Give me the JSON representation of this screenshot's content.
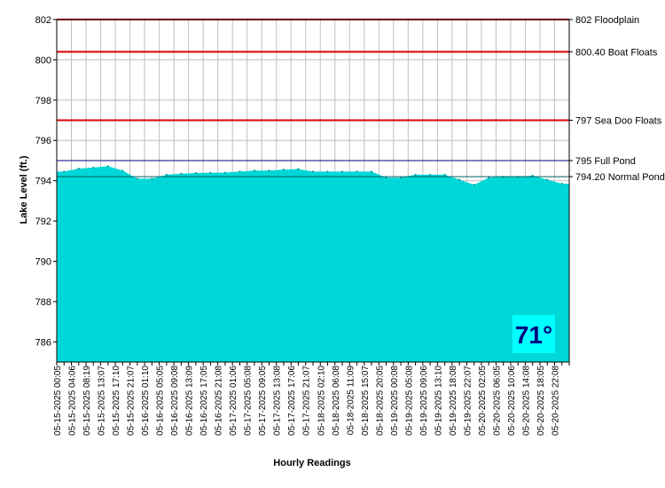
{
  "chart_data": {
    "type": "area",
    "title": "",
    "xlabel": "Hourly Readings",
    "ylabel": "Lake Level (ft.)",
    "ylim": [
      785,
      802
    ],
    "y_ticks": [
      "802",
      "800",
      "798",
      "796",
      "794",
      "792",
      "790",
      "788",
      "786"
    ],
    "grid": true,
    "fill_color": "#00dcdc",
    "x_tick_labels": [
      "05-15-2025 00:05",
      "05-15-2025 04:06",
      "05-15-2025 08:19",
      "05-15-2025 13:07",
      "05-15-2025 17:10",
      "05-15-2025 21:07",
      "05-16-2025 01:10",
      "05-16-2025 05:05",
      "05-16-2025 09:08",
      "05-16-2025 13:09",
      "05-16-2025 17:05",
      "05-16-2025 21:08",
      "05-17-2025 01:06",
      "05-17-2025 05:08",
      "05-17-2025 09:05",
      "05-17-2025 13:08",
      "05-17-2025 17:06",
      "05-17-2025 21:07",
      "05-18-2025 02:10",
      "05-18-2025 06:08",
      "05-18-2025 11:09",
      "05-18-2025 15:07",
      "05-18-2025 20:05",
      "05-19-2025 00:08",
      "05-19-2025 05:08",
      "05-19-2025 09:06",
      "05-19-2025 13:10",
      "05-19-2025 18:08",
      "05-19-2025 22:07",
      "05-20-2025 02:05",
      "05-20-2025 06:05",
      "05-20-2025 10:06",
      "05-20-2025 14:08",
      "05-20-2025 18:05",
      "05-20-2025 22:08"
    ],
    "series": [
      {
        "values": [
          794.45,
          794.6,
          794.65,
          794.72,
          794.5,
          794.1,
          794.1,
          794.3,
          794.35,
          794.38,
          794.4,
          794.4,
          794.45,
          794.5,
          794.5,
          794.55,
          794.58,
          794.45,
          794.45,
          794.45,
          794.45,
          794.45,
          794.15,
          794.15,
          794.3,
          794.3,
          794.3,
          794.05,
          793.8,
          794.15,
          794.2,
          794.2,
          794.25,
          794.05,
          793.85
        ]
      }
    ],
    "reference_lines": [
      {
        "value": 802,
        "label": "802 Floodplain",
        "color": "#dd0000"
      },
      {
        "value": 800.4,
        "label": "800.40 Boat Floats",
        "color": "#dd0000"
      },
      {
        "value": 797,
        "label": "797 Sea Doo Floats",
        "color": "#dd0000"
      },
      {
        "value": 795,
        "label": "795 Full Pond",
        "color": "#000080"
      },
      {
        "value": 794.2,
        "label": "794.20 Normal Pond",
        "color": "#006060"
      }
    ]
  },
  "temperature_badge": {
    "text": "71°",
    "background": "#00ffff",
    "color": "#000080"
  }
}
